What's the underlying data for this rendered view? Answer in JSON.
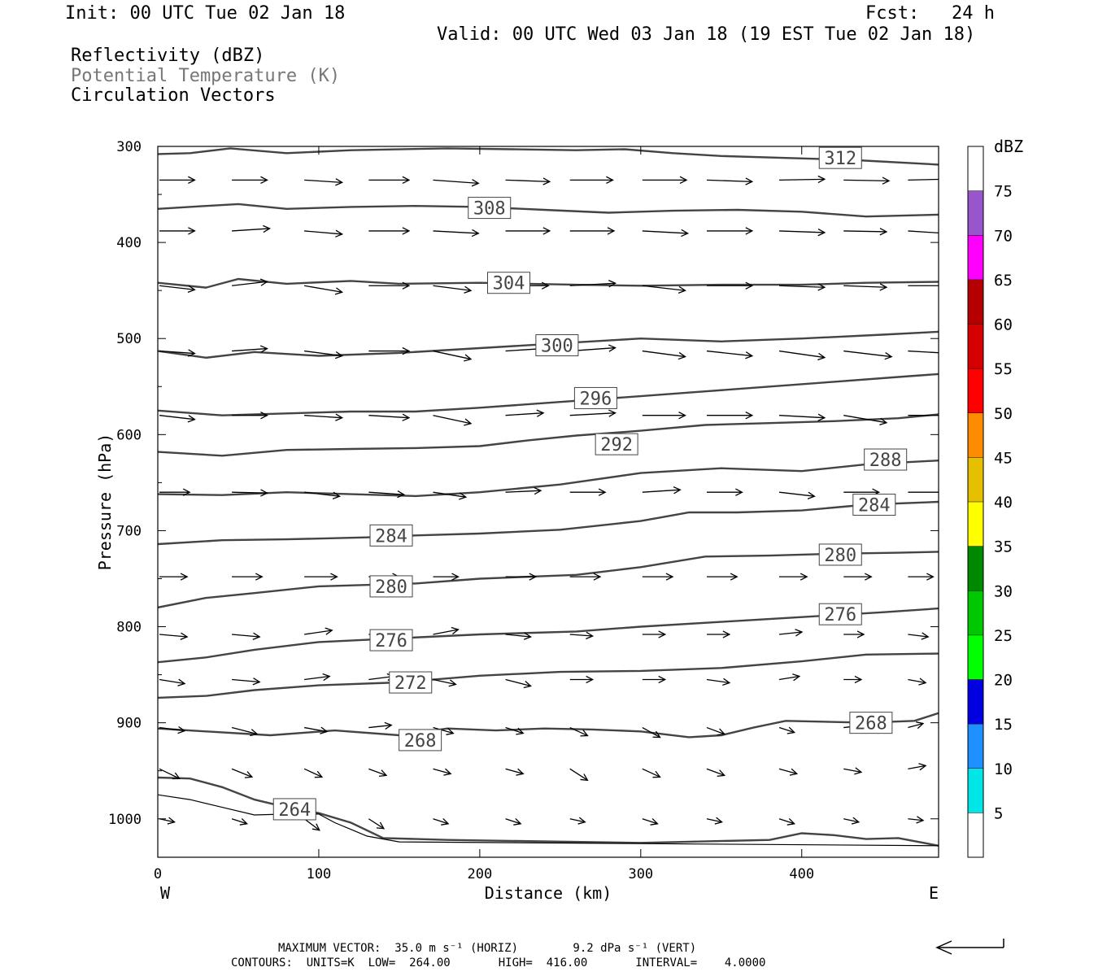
{
  "header": {
    "init": "Init: 00 UTC Tue 02 Jan 18",
    "fcst": "Fcst:   24 h",
    "valid": "Valid: 00 UTC Wed 03 Jan 18 (19 EST Tue 02 Jan 18)"
  },
  "legend": {
    "line1": "Reflectivity (dBZ)",
    "line2": "Potential Temperature (K)",
    "line3": "Circulation Vectors"
  },
  "footer": {
    "line1": "MAXIMUM VECTOR:  35.0 m s⁻¹ (HORIZ)        9.2 dPa s⁻¹ (VERT)",
    "line2": "CONTOURS:  UNITS=K  LOW=  264.00       HIGH=  416.00       INTERVAL=    4.0000"
  },
  "chart_data": {
    "type": "line",
    "title": "",
    "xlabel": "Distance (km)",
    "ylabel": "Pressure (hPa)",
    "xlim": [
      0,
      485
    ],
    "ylim": [
      1040,
      300
    ],
    "x_ticks": [
      0,
      100,
      200,
      300,
      400
    ],
    "y_ticks": [
      300,
      400,
      500,
      600,
      700,
      800,
      900,
      1000
    ],
    "x_left_label": "W",
    "x_right_label": "E",
    "colorbar": {
      "unit": "dBZ",
      "levels": [
        5,
        10,
        15,
        20,
        25,
        30,
        35,
        40,
        45,
        50,
        55,
        60,
        65,
        70,
        75
      ],
      "colors": [
        "#ffffff",
        "#00e6e6",
        "#1e90ff",
        "#0000e0",
        "#00ff00",
        "#00c800",
        "#008800",
        "#ffff00",
        "#e6c000",
        "#ff8c00",
        "#ff0000",
        "#d60000",
        "#b40000",
        "#ff00ff",
        "#9955cc",
        "#ffffff"
      ]
    },
    "isentrope_color": "#444444",
    "series": [
      {
        "name": "312",
        "x": [
          0,
          20,
          45,
          80,
          120,
          180,
          220,
          260,
          290,
          320,
          350,
          390,
          430,
          485
        ],
        "values": [
          308,
          307,
          302,
          307,
          304,
          302,
          303,
          304,
          303,
          307,
          310,
          312,
          314,
          319
        ]
      },
      {
        "name": "308",
        "x": [
          0,
          30,
          50,
          80,
          120,
          160,
          200,
          240,
          280,
          320,
          360,
          400,
          440,
          485
        ],
        "values": [
          365,
          362,
          360,
          365,
          363,
          362,
          363,
          366,
          369,
          367,
          366,
          368,
          373,
          371
        ]
      },
      {
        "name": "304",
        "x": [
          0,
          30,
          50,
          80,
          120,
          150,
          200,
          230,
          260,
          300,
          350,
          400,
          440,
          485
        ],
        "values": [
          442,
          447,
          438,
          443,
          440,
          443,
          442,
          443,
          444,
          445,
          444,
          444,
          442,
          441
        ]
      },
      {
        "name": "300",
        "x": [
          0,
          30,
          60,
          100,
          150,
          200,
          250,
          300,
          350,
          400,
          450,
          485
        ],
        "values": [
          513,
          520,
          514,
          518,
          515,
          510,
          505,
          500,
          503,
          500,
          496,
          493
        ]
      },
      {
        "name": "296",
        "x": [
          0,
          40,
          80,
          120,
          160,
          200,
          250,
          300,
          340,
          380,
          420,
          460,
          485
        ],
        "values": [
          575,
          580,
          578,
          576,
          576,
          572,
          566,
          560,
          555,
          550,
          545,
          540,
          537
        ]
      },
      {
        "name": "292",
        "x": [
          0,
          40,
          80,
          120,
          160,
          200,
          230,
          260,
          300,
          340,
          380,
          420,
          460,
          485
        ],
        "values": [
          618,
          622,
          616,
          615,
          614,
          612,
          606,
          601,
          596,
          590,
          588,
          586,
          583,
          579
        ]
      },
      {
        "name": "288",
        "x": [
          0,
          40,
          80,
          120,
          160,
          200,
          250,
          300,
          350,
          400,
          440,
          485
        ],
        "values": [
          662,
          663,
          660,
          662,
          664,
          660,
          652,
          640,
          635,
          638,
          631,
          627
        ]
      },
      {
        "name": "284",
        "x": [
          0,
          40,
          80,
          130,
          160,
          200,
          250,
          300,
          330,
          360,
          400,
          440,
          485
        ],
        "values": [
          714,
          710,
          709,
          707,
          705,
          703,
          699,
          690,
          681,
          681,
          679,
          673,
          670
        ]
      },
      {
        "name": "280",
        "x": [
          0,
          30,
          60,
          100,
          160,
          200,
          260,
          300,
          340,
          380,
          420,
          460,
          485
        ],
        "values": [
          780,
          770,
          765,
          758,
          755,
          750,
          746,
          738,
          727,
          726,
          724,
          723,
          722
        ]
      },
      {
        "name": "276",
        "x": [
          0,
          30,
          60,
          100,
          150,
          200,
          260,
          300,
          350,
          400,
          450,
          485
        ],
        "values": [
          837,
          832,
          824,
          816,
          812,
          808,
          805,
          800,
          795,
          790,
          785,
          781
        ]
      },
      {
        "name": "272",
        "x": [
          0,
          30,
          60,
          100,
          150,
          200,
          250,
          300,
          350,
          400,
          440,
          485
        ],
        "values": [
          874,
          872,
          866,
          861,
          858,
          851,
          847,
          846,
          843,
          836,
          829,
          828
        ]
      },
      {
        "name": "268",
        "x": [
          0,
          30,
          70,
          110,
          150,
          180,
          210,
          240,
          270,
          300,
          330,
          350,
          370,
          390,
          440,
          470,
          485
        ],
        "values": [
          906,
          909,
          913,
          908,
          913,
          906,
          908,
          906,
          907,
          909,
          915,
          913,
          905,
          898,
          900,
          898,
          890
        ]
      },
      {
        "name": "264",
        "x": [
          0,
          20,
          40,
          60,
          80,
          100,
          120,
          140,
          180,
          220,
          300,
          380,
          400,
          420,
          440,
          460,
          485
        ],
        "values": [
          957,
          958,
          967,
          980,
          988,
          994,
          1004,
          1020,
          1022,
          1023,
          1025,
          1022,
          1015,
          1017,
          1021,
          1020,
          1028
        ]
      }
    ],
    "thin_contours": [
      {
        "x": [
          0,
          20,
          40,
          60,
          80,
          100,
          110,
          130,
          150,
          485
        ],
        "values": [
          975,
          980,
          988,
          996,
          995,
          995,
          1004,
          1018,
          1024,
          1028
        ]
      }
    ],
    "vector_rows": [
      {
        "p": 335,
        "x": [
          0,
          45,
          90,
          130,
          170,
          215,
          255,
          300,
          340,
          385,
          425,
          465
        ],
        "dx": [
          28,
          28,
          30,
          32,
          36,
          35,
          34,
          35,
          36,
          36,
          36,
          30
        ],
        "dp": [
          0,
          0,
          3,
          0,
          4,
          2,
          0,
          0,
          2,
          -1,
          1,
          -1
        ]
      },
      {
        "p": 388,
        "x": [
          0,
          45,
          90,
          130,
          170,
          215,
          255,
          300,
          340,
          385,
          425,
          465
        ],
        "dx": [
          28,
          30,
          30,
          32,
          36,
          35,
          35,
          36,
          36,
          36,
          34,
          30
        ],
        "dp": [
          0,
          -3,
          4,
          0,
          3,
          0,
          0,
          3,
          0,
          2,
          1,
          3
        ]
      },
      {
        "p": 445,
        "x": [
          0,
          45,
          90,
          130,
          170,
          215,
          255,
          300,
          340,
          385,
          425,
          465
        ],
        "dx": [
          28,
          28,
          30,
          32,
          30,
          34,
          36,
          34,
          36,
          36,
          34,
          30
        ],
        "dp": [
          5,
          -5,
          8,
          0,
          6,
          0,
          -3,
          6,
          0,
          2,
          2,
          0
        ]
      },
      {
        "p": 513,
        "x": [
          0,
          45,
          90,
          130,
          170,
          215,
          255,
          300,
          340,
          385,
          425,
          465
        ],
        "dx": [
          28,
          28,
          30,
          32,
          30,
          30,
          36,
          34,
          36,
          36,
          38,
          34
        ],
        "dp": [
          3,
          -3,
          6,
          0,
          10,
          -3,
          -4,
          7,
          6,
          8,
          7,
          3
        ]
      },
      {
        "p": 580,
        "x": [
          0,
          45,
          90,
          130,
          170,
          215,
          255,
          300,
          340,
          385,
          425,
          465
        ],
        "dx": [
          28,
          28,
          30,
          32,
          30,
          30,
          36,
          34,
          36,
          36,
          34,
          34
        ],
        "dp": [
          5,
          0,
          3,
          3,
          10,
          -3,
          -3,
          0,
          0,
          3,
          9,
          0
        ]
      },
      {
        "p": 660,
        "x": [
          0,
          45,
          90,
          130,
          170,
          215,
          255,
          300,
          340,
          385,
          425,
          465
        ],
        "dx": [
          24,
          28,
          28,
          28,
          26,
          28,
          28,
          30,
          28,
          28,
          28,
          30
        ],
        "dp": [
          0,
          1,
          5,
          3,
          6,
          -2,
          0,
          -3,
          0,
          5,
          0,
          0
        ]
      },
      {
        "p": 748,
        "x": [
          0,
          45,
          90,
          130,
          170,
          215,
          255,
          300,
          340,
          385,
          425,
          465
        ],
        "dx": [
          22,
          24,
          26,
          24,
          20,
          24,
          24,
          24,
          24,
          22,
          22,
          20
        ],
        "dp": [
          0,
          0,
          0,
          0,
          0,
          0,
          0,
          0,
          0,
          0,
          0,
          0
        ]
      },
      {
        "p": 808,
        "x": [
          0,
          45,
          90,
          130,
          170,
          215,
          255,
          300,
          340,
          385,
          425,
          465
        ],
        "dx": [
          22,
          22,
          22,
          22,
          20,
          20,
          18,
          18,
          18,
          18,
          16,
          16
        ],
        "dp": [
          3,
          3,
          -5,
          0,
          -6,
          3,
          2,
          0,
          0,
          -3,
          0,
          3
        ]
      },
      {
        "p": 855,
        "x": [
          0,
          45,
          90,
          130,
          170,
          215,
          255,
          300,
          340,
          385,
          425,
          465
        ],
        "dx": [
          20,
          22,
          20,
          20,
          18,
          20,
          18,
          18,
          18,
          16,
          14,
          14
        ],
        "dp": [
          5,
          3,
          -4,
          -4,
          6,
          8,
          0,
          0,
          4,
          -4,
          0,
          4
        ]
      },
      {
        "p": 905,
        "x": [
          0,
          45,
          90,
          130,
          170,
          215,
          255,
          300,
          340,
          385,
          425,
          465
        ],
        "dx": [
          20,
          20,
          18,
          18,
          16,
          14,
          14,
          14,
          14,
          12,
          12,
          12
        ],
        "dp": [
          4,
          8,
          5,
          -3,
          7,
          7,
          10,
          12,
          8,
          6,
          -2,
          -5
        ]
      },
      {
        "p": 948,
        "x": [
          0,
          45,
          90,
          130,
          170,
          215,
          255,
          300,
          340,
          385,
          425,
          465
        ],
        "dx": [
          16,
          16,
          14,
          14,
          14,
          14,
          14,
          14,
          14,
          14,
          14,
          14
        ],
        "dp": [
          12,
          10,
          10,
          8,
          6,
          6,
          14,
          10,
          8,
          6,
          4,
          -4
        ]
      },
      {
        "p": 1000,
        "x": [
          0,
          45,
          90,
          130,
          170,
          215,
          255,
          300,
          340,
          385,
          425,
          465
        ],
        "dx": [
          12,
          12,
          12,
          12,
          12,
          12,
          12,
          12,
          12,
          12,
          12,
          12
        ],
        "dp": [
          4,
          6,
          14,
          12,
          6,
          6,
          4,
          6,
          4,
          6,
          4,
          2
        ]
      }
    ],
    "arrow_color": "#000000",
    "reference_vector_direction": "west"
  }
}
